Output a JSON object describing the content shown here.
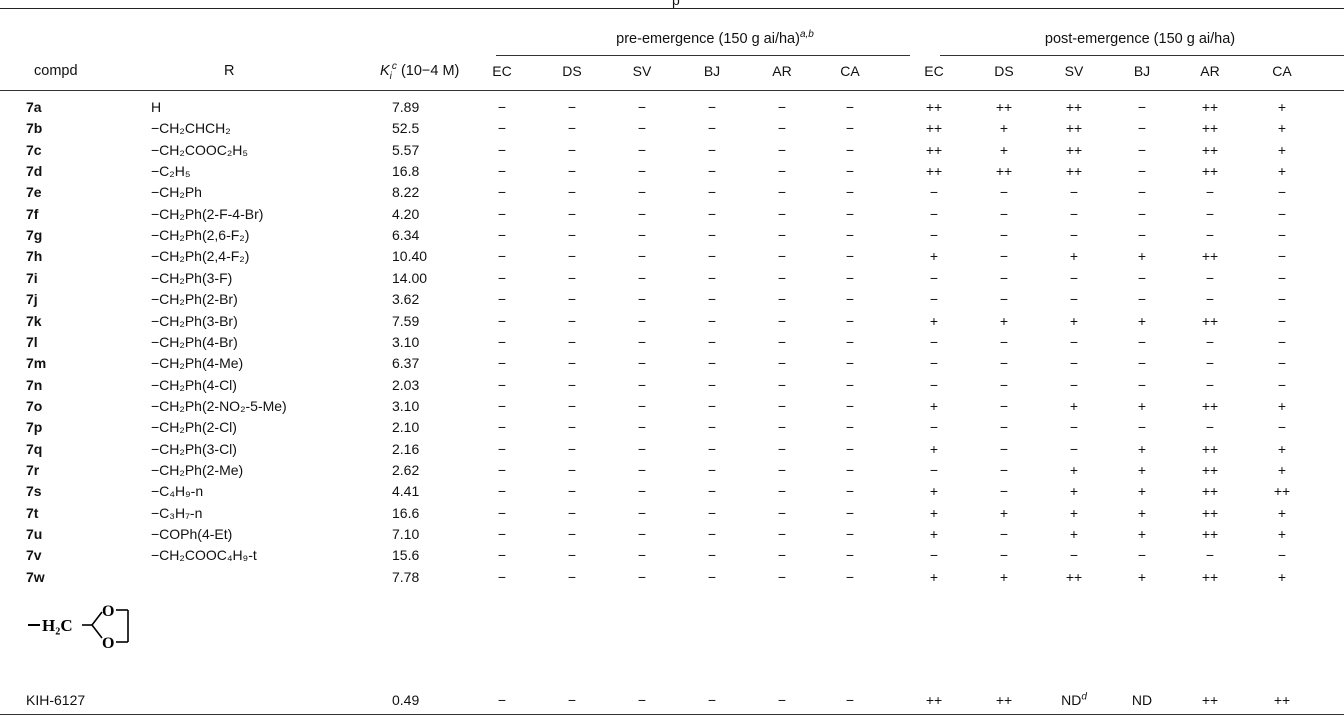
{
  "header": {
    "cut_text": "p",
    "group_pre": "pre-emergence (150 g ai/ha)",
    "group_pre_sup": "a,b",
    "group_post": "post-emergence (150 g ai/ha)",
    "col_compd": "compd",
    "col_r": "R",
    "col_ki": "K",
    "col_ki_sub": "i",
    "col_ki_sup": "c",
    "col_ki_unit": "(10−4 M)",
    "species": [
      "EC",
      "DS",
      "SV",
      "BJ",
      "AR",
      "CA",
      "EC",
      "DS",
      "SV",
      "BJ",
      "AR",
      "CA"
    ]
  },
  "rows": [
    {
      "compd": "7a",
      "r": "H",
      "ki": "7.89",
      "pre": [
        "−",
        "−",
        "−",
        "−",
        "−",
        "−"
      ],
      "post": [
        "++",
        "++",
        "++",
        "−",
        "++",
        "+"
      ]
    },
    {
      "compd": "7b",
      "r": "−CH₂CHCH₂",
      "ki": "52.5",
      "pre": [
        "−",
        "−",
        "−",
        "−",
        "−",
        "−"
      ],
      "post": [
        "++",
        "+",
        "++",
        "−",
        "++",
        "+"
      ]
    },
    {
      "compd": "7c",
      "r": "−CH₂COOC₂H₅",
      "ki": "5.57",
      "pre": [
        "−",
        "−",
        "−",
        "−",
        "−",
        "−"
      ],
      "post": [
        "++",
        "+",
        "++",
        "−",
        "++",
        "+"
      ]
    },
    {
      "compd": "7d",
      "r": "−C₂H₅",
      "ki": "16.8",
      "pre": [
        "−",
        "−",
        "−",
        "−",
        "−",
        "−"
      ],
      "post": [
        "++",
        "++",
        "++",
        "−",
        "++",
        "+"
      ]
    },
    {
      "compd": "7e",
      "r": "−CH₂Ph",
      "ki": "8.22",
      "pre": [
        "−",
        "−",
        "−",
        "−",
        "−",
        "−"
      ],
      "post": [
        "−",
        "−",
        "−",
        "−",
        "−",
        "−"
      ]
    },
    {
      "compd": "7f",
      "r": "−CH₂Ph(2-F-4-Br)",
      "ki": "4.20",
      "pre": [
        "−",
        "−",
        "−",
        "−",
        "−",
        "−"
      ],
      "post": [
        "−",
        "−",
        "−",
        "−",
        "−",
        "−"
      ]
    },
    {
      "compd": "7g",
      "r": "−CH₂Ph(2,6-F₂)",
      "ki": "6.34",
      "pre": [
        "−",
        "−",
        "−",
        "−",
        "−",
        "−"
      ],
      "post": [
        "−",
        "−",
        "−",
        "−",
        "−",
        "−"
      ]
    },
    {
      "compd": "7h",
      "r": "−CH₂Ph(2,4-F₂)",
      "ki": "10.40",
      "pre": [
        "−",
        "−",
        "−",
        "−",
        "−",
        "−"
      ],
      "post": [
        "+",
        "−",
        "+",
        "+",
        "++",
        "−"
      ]
    },
    {
      "compd": "7i",
      "r": "−CH₂Ph(3-F)",
      "ki": "14.00",
      "pre": [
        "−",
        "−",
        "−",
        "−",
        "−",
        "−"
      ],
      "post": [
        "−",
        "−",
        "−",
        "−",
        "−",
        "−"
      ]
    },
    {
      "compd": "7j",
      "r": "−CH₂Ph(2-Br)",
      "ki": "3.62",
      "pre": [
        "−",
        "−",
        "−",
        "−",
        "−",
        "−"
      ],
      "post": [
        "−",
        "−",
        "−",
        "−",
        "−",
        "−"
      ]
    },
    {
      "compd": "7k",
      "r": "−CH₂Ph(3-Br)",
      "ki": "7.59",
      "pre": [
        "−",
        "−",
        "−",
        "−",
        "−",
        "−"
      ],
      "post": [
        "+",
        "+",
        "+",
        "+",
        "++",
        "−"
      ]
    },
    {
      "compd": "7l",
      "r": "−CH₂Ph(4-Br)",
      "ki": "3.10",
      "pre": [
        "−",
        "−",
        "−",
        "−",
        "−",
        "−"
      ],
      "post": [
        "−",
        "−",
        "−",
        "−",
        "−",
        "−"
      ]
    },
    {
      "compd": "7m",
      "r": "−CH₂Ph(4-Me)",
      "ki": "6.37",
      "pre": [
        "−",
        "−",
        "−",
        "−",
        "−",
        "−"
      ],
      "post": [
        "−",
        "−",
        "−",
        "−",
        "−",
        "−"
      ]
    },
    {
      "compd": "7n",
      "r": "−CH₂Ph(4-Cl)",
      "ki": "2.03",
      "pre": [
        "−",
        "−",
        "−",
        "−",
        "−",
        "−"
      ],
      "post": [
        "−",
        "−",
        "−",
        "−",
        "−",
        "−"
      ]
    },
    {
      "compd": "7o",
      "r": "−CH₂Ph(2-NO₂-5-Me)",
      "ki": "3.10",
      "pre": [
        "−",
        "−",
        "−",
        "−",
        "−",
        "−"
      ],
      "post": [
        "+",
        "−",
        "+",
        "+",
        "++",
        "+"
      ]
    },
    {
      "compd": "7p",
      "r": "−CH₂Ph(2-Cl)",
      "ki": "2.10",
      "pre": [
        "−",
        "−",
        "−",
        "−",
        "−",
        "−"
      ],
      "post": [
        "−",
        "−",
        "−",
        "−",
        "−",
        "−"
      ]
    },
    {
      "compd": "7q",
      "r": "−CH₂Ph(3-Cl)",
      "ki": "2.16",
      "pre": [
        "−",
        "−",
        "−",
        "−",
        "−",
        "−"
      ],
      "post": [
        "+",
        "−",
        "−",
        "+",
        "++",
        "+"
      ]
    },
    {
      "compd": "7r",
      "r": "−CH₂Ph(2-Me)",
      "ki": "2.62",
      "pre": [
        "−",
        "−",
        "−",
        "−",
        "−",
        "−"
      ],
      "post": [
        "−",
        "−",
        "+",
        "+",
        "++",
        "+"
      ]
    },
    {
      "compd": "7s",
      "r": "−C₄H₉-n",
      "ki": "4.41",
      "pre": [
        "−",
        "−",
        "−",
        "−",
        "−",
        "−"
      ],
      "post": [
        "+",
        "−",
        "+",
        "+",
        "++",
        "++"
      ]
    },
    {
      "compd": "7t",
      "r": "−C₃H₇-n",
      "ki": "16.6",
      "pre": [
        "−",
        "−",
        "−",
        "−",
        "−",
        "−"
      ],
      "post": [
        "+",
        "+",
        "+",
        "+",
        "++",
        "+"
      ]
    },
    {
      "compd": "7u",
      "r": "−COPh(4-Et)",
      "ki": "7.10",
      "pre": [
        "−",
        "−",
        "−",
        "−",
        "−",
        "−"
      ],
      "post": [
        "+",
        "−",
        "+",
        "+",
        "++",
        "+"
      ]
    },
    {
      "compd": "7v",
      "r": "−CH₂COOC₄H₉-t",
      "ki": "15.6",
      "pre": [
        "−",
        "−",
        "−",
        "−",
        "−",
        "−"
      ],
      "post": [
        "−",
        "−",
        "−",
        "−",
        "−",
        "−"
      ]
    },
    {
      "compd": "7w",
      "r": "",
      "ki": "7.78",
      "pre": [
        "−",
        "−",
        "−",
        "−",
        "−",
        "−"
      ],
      "post": [
        "+",
        "+",
        "++",
        "+",
        "++",
        "+"
      ]
    }
  ],
  "structure": {
    "h2c": "H₂C",
    "o_top": "O",
    "o_bottom": "O"
  },
  "reference": {
    "compd": "KIH-6127",
    "ki": "0.49",
    "pre": [
      "−",
      "−",
      "−",
      "−",
      "−",
      "−"
    ],
    "post": [
      "++",
      "++",
      "ND",
      "ND",
      "++",
      "++"
    ],
    "nd_sup": "d"
  }
}
